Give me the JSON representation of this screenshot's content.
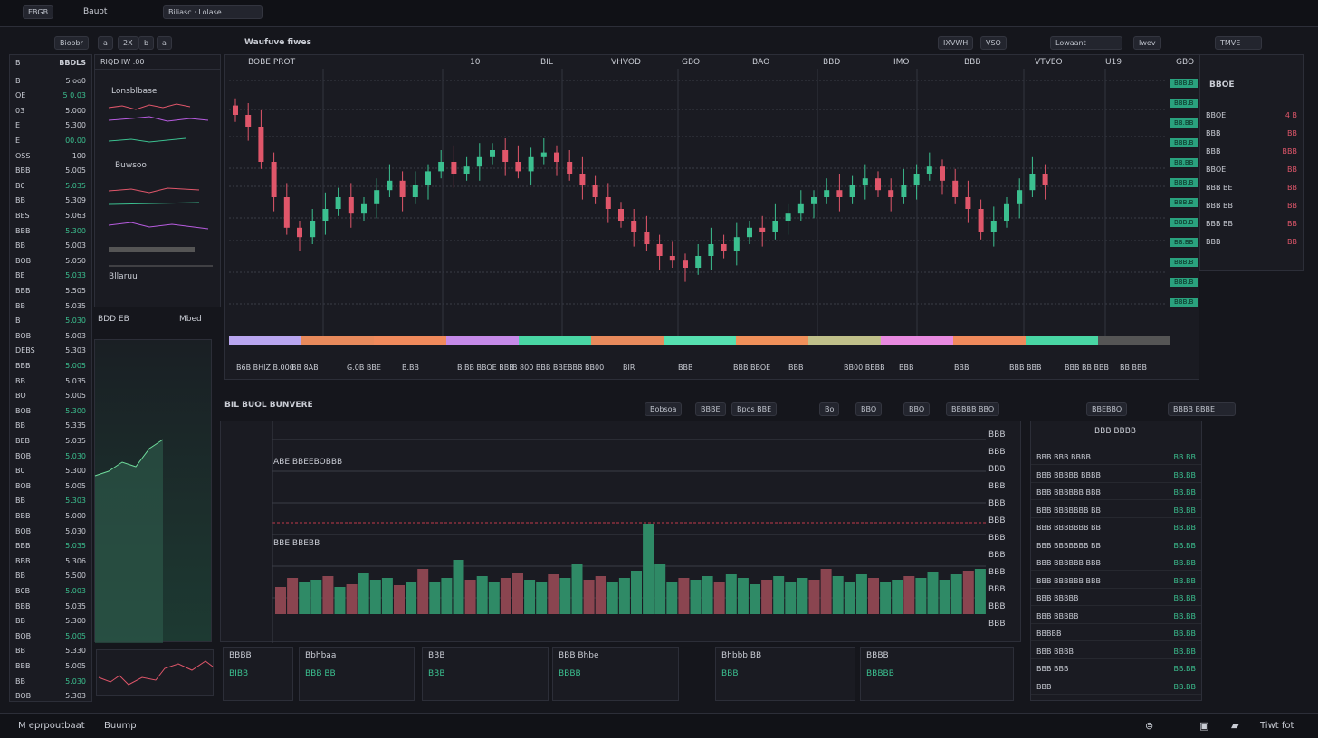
{
  "topbar": {
    "app_label": "EBGB",
    "account": "Bauot",
    "tab_label": "Biliasc",
    "tab_value": "Lolase"
  },
  "toolbar": {
    "layout": "Bioobr",
    "buttons": [
      "a",
      "2X",
      "b",
      "a"
    ],
    "chart_title": "Waufuve fiwes",
    "right": [
      "IXVWH",
      "VSO",
      "Lowaant",
      "Iwev",
      "TMVE"
    ]
  },
  "colors": {
    "up": "#3bbf8f",
    "down": "#e0566a",
    "accent": "#2aa27e",
    "background": "#15161c"
  },
  "watchlist": {
    "header": [
      "B",
      "BBDLS"
    ],
    "rows": [
      [
        "B",
        "5 oo0"
      ],
      [
        "OE",
        "5 0.03"
      ],
      [
        "03",
        "5.000"
      ],
      [
        "E",
        "5.300"
      ],
      [
        "E",
        "00.00"
      ],
      [
        "OSS",
        "100"
      ],
      [
        "BBB",
        "5.005"
      ],
      [
        "B0",
        "5.035"
      ],
      [
        "BB",
        "5.309"
      ],
      [
        "BES",
        "5.063"
      ],
      [
        "BBB",
        "5.300"
      ],
      [
        "BB",
        "5.003"
      ],
      [
        "BOB",
        "5.050"
      ],
      [
        "BE",
        "5.033"
      ],
      [
        "BBB",
        "5.505"
      ],
      [
        "BB",
        "5.035"
      ],
      [
        "B",
        "5.030"
      ],
      [
        "BOB",
        "5.003"
      ],
      [
        "DEBS",
        "5.303"
      ],
      [
        "BBB",
        "5.005"
      ],
      [
        "BB",
        "5.035"
      ],
      [
        "BO",
        "5.005"
      ],
      [
        "BOB",
        "5.300"
      ],
      [
        "BB",
        "5.335"
      ],
      [
        "BEB",
        "5.035"
      ],
      [
        "BOB",
        "5.030"
      ],
      [
        "B0",
        "5.300"
      ],
      [
        "BOB",
        "5.005"
      ],
      [
        "BB",
        "5.303"
      ],
      [
        "BBB",
        "5.000"
      ],
      [
        "BOB",
        "5.030"
      ],
      [
        "BBB",
        "5.035"
      ],
      [
        "BBB",
        "5.306"
      ],
      [
        "BB",
        "5.500"
      ],
      [
        "B0B",
        "5.003"
      ],
      [
        "BBB",
        "5.035"
      ],
      [
        "BB",
        "5.300"
      ],
      [
        "BOB",
        "5.005"
      ],
      [
        "BB",
        "5.330"
      ],
      [
        "BBB",
        "5.005"
      ],
      [
        "BB",
        "5.030"
      ],
      [
        "BOB",
        "5.303"
      ]
    ]
  },
  "indicators": {
    "header": "RIQD IW  .00",
    "panel1": "Lonsblbase",
    "panel2": "Buwsoo",
    "panel3": "Bllaruu",
    "header2": "BDD EB",
    "header2_right": "Mbed"
  },
  "main_chart": {
    "header": "BOBE PROT",
    "top_ticks": [
      "10",
      "BIL",
      "VHVOD",
      "GBO",
      "BAO",
      "BBD",
      "IMO",
      "BBB",
      "VTVEO",
      "U19",
      "GBO"
    ],
    "time_ticks": [
      "B6B BHIZ B.000",
      "BB 8AB",
      "G.0B BBE",
      "B.BB",
      "B.BB BBOE BBB",
      "B 800 BBB BBE",
      "BBB BB00",
      "BIR",
      "BBB",
      "BBB BBOE",
      "BBB",
      "BB00 BBBB",
      "BBB",
      "BBB",
      "BBB BBB",
      "BBB BB BBB",
      "BB BBB"
    ],
    "price_tags": [
      "BBB.B",
      "BBB.B",
      "BB.BB",
      "BBB.B",
      "BB.BB",
      "BBB.B",
      "BBB.B",
      "BBB.B",
      "BB.BB",
      "BBB.B",
      "BBB.B",
      "BBB.B"
    ],
    "chart_data": {
      "type": "candlestick",
      "close": [
        90,
        85,
        70,
        55,
        42,
        38,
        45,
        50,
        55,
        48,
        52,
        58,
        62,
        55,
        60,
        66,
        70,
        65,
        68,
        72,
        75,
        70,
        66,
        72,
        74,
        70,
        65,
        60,
        55,
        50,
        45,
        40,
        35,
        30,
        28,
        25,
        30,
        35,
        32,
        38,
        42,
        40,
        45,
        48,
        52,
        55,
        58,
        55,
        60,
        63,
        58,
        55,
        60,
        65,
        68,
        62,
        55,
        50,
        40,
        45,
        52,
        58,
        65,
        60
      ]
    }
  },
  "right_panel": {
    "title": "BBOE",
    "rows": [
      [
        "BBOE",
        "4 B"
      ],
      [
        "BBB",
        "BB"
      ],
      [
        "BBB",
        "BBB"
      ],
      [
        "BBOE",
        "BB"
      ],
      [
        "BBB BE",
        "BB"
      ],
      [
        "BBB BB",
        "BB"
      ],
      [
        "BBB BB",
        "BB"
      ],
      [
        "BBB",
        "BB"
      ]
    ]
  },
  "lower": {
    "title": "BIL BUOL BUNVERE",
    "tabs": [
      "Bobsoa",
      "BBBE",
      "Bpos BBE",
      "Bo",
      "BBO",
      "BBO",
      "BBBBB BBO",
      "BBEBBO"
    ],
    "right_btn": "BBBB BBBE",
    "labels": [
      "ABE BBEEBOBBB",
      "BBE BBEBB"
    ],
    "axis": [
      "BBB",
      "BBB",
      "BBB",
      "BBB",
      "BBB",
      "BBB",
      "BBB",
      "BBB",
      "BBB",
      "BBB",
      "BBB",
      "BBB"
    ],
    "volume_data": {
      "type": "bar",
      "values": [
        30,
        40,
        35,
        38,
        42,
        30,
        33,
        45,
        38,
        40,
        32,
        36,
        50,
        35,
        40,
        60,
        38,
        42,
        35,
        40,
        45,
        38,
        36,
        44,
        40,
        55,
        38,
        42,
        35,
        40,
        48,
        100,
        55,
        35,
        40,
        38,
        42,
        36,
        44,
        40,
        33,
        38,
        42,
        36,
        40,
        38,
        50,
        42,
        35,
        44,
        40,
        36,
        38,
        42,
        40,
        46,
        38,
        44,
        48,
        50
      ],
      "colors": [
        "d",
        "d",
        "g",
        "g",
        "d",
        "g",
        "d",
        "g",
        "g",
        "g",
        "d",
        "g",
        "d",
        "g",
        "g",
        "g",
        "d",
        "g",
        "g",
        "d",
        "d",
        "g",
        "g",
        "d",
        "g",
        "g",
        "d",
        "d",
        "g",
        "g",
        "g",
        "g",
        "g",
        "g",
        "d",
        "g",
        "g",
        "d",
        "g",
        "g",
        "g",
        "d",
        "g",
        "g",
        "g",
        "d",
        "d",
        "g",
        "g",
        "g",
        "d",
        "g",
        "g",
        "d",
        "g",
        "g",
        "g",
        "g",
        "d",
        "g"
      ]
    }
  },
  "cards": [
    [
      "BBBB",
      "BIBB"
    ],
    [
      "Bbhbaa",
      "BBB BB"
    ],
    [
      "BBB",
      "BBB"
    ],
    [
      "BBB Bhbe",
      "BBBB"
    ],
    [
      "Bhbbb BB",
      "BBB"
    ],
    [
      "BBBB",
      "BBBBB"
    ]
  ],
  "orderbook": {
    "title": "BBB BBBB",
    "rows": [
      [
        "BBB BBB BBBB",
        "BB.BB"
      ],
      [
        "BBB BBBBB BBBB",
        "BB.BB"
      ],
      [
        "BBB BBBBBB BBB",
        "BB.BB"
      ],
      [
        "BBB BBBBBBB BB",
        "BB.BB"
      ],
      [
        "BBB BBBBBBB BB",
        "BB.BB"
      ],
      [
        "BBB BBBBBBB BB",
        "BB.BB"
      ],
      [
        "BBB BBBBBB BBB",
        "BB.BB"
      ],
      [
        "BBB BBBBBB BBB",
        "BB.BB"
      ],
      [
        "BBB BBBBB",
        "BB.BB"
      ],
      [
        "BBB BBBBB",
        "BB.BB"
      ],
      [
        "BBBBB",
        "BB.BB"
      ],
      [
        "BBB BBBB",
        "BB.BB"
      ],
      [
        "BBB BBB",
        "BB.BB"
      ],
      [
        "BBB",
        "BB.BB"
      ]
    ]
  },
  "footer": {
    "left": "M eprpoutbaat",
    "mid": "Buump",
    "right": "Tiwt fot"
  }
}
